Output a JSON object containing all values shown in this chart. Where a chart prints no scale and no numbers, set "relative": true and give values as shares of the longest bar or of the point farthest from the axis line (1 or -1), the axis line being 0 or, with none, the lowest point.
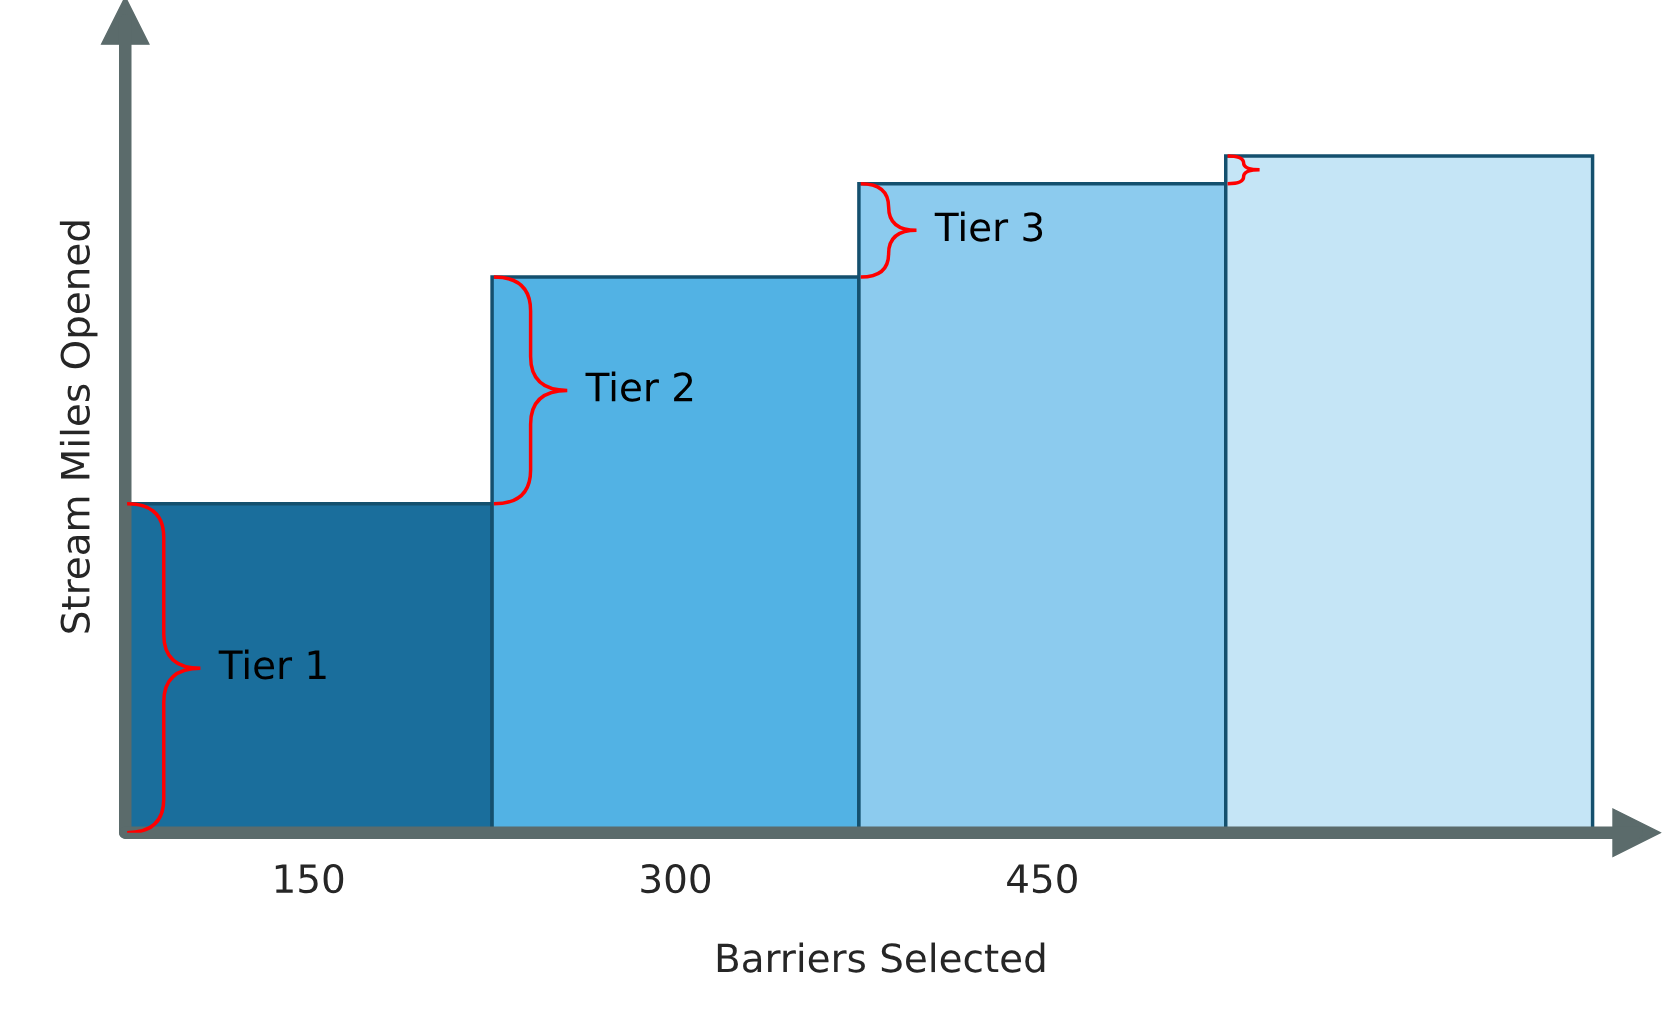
{
  "chart_data": {
    "type": "bar",
    "relative": true,
    "xlabel": "Barriers Selected",
    "ylabel": "Stream Miles Opened",
    "categories": [
      "150",
      "300",
      "450",
      null
    ],
    "values": [
      0.486,
      0.821,
      0.959,
      1
    ],
    "colors": [
      "#1a6e9c",
      "#52b2e4",
      "#8ccbee",
      "#c5e5f6"
    ],
    "annotations": [
      "Tier 1",
      "Tier 2",
      "Tier 3"
    ]
  }
}
